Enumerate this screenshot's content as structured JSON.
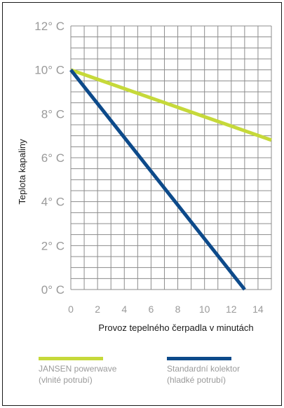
{
  "chart_data": {
    "type": "line",
    "xlabel": "Provoz tepelného čerpadla v minutách",
    "ylabel": "Teplota kapaliny",
    "x_ticks": [
      0,
      2,
      4,
      6,
      8,
      10,
      12,
      14
    ],
    "y_ticks": [
      {
        "value": 0,
        "label": "0° C"
      },
      {
        "value": 2,
        "label": "2° C"
      },
      {
        "value": 4,
        "label": "4° C"
      },
      {
        "value": 6,
        "label": "6° C"
      },
      {
        "value": 8,
        "label": "8° C"
      },
      {
        "value": 10,
        "label": "10° C"
      },
      {
        "value": 12,
        "label": "12° C"
      }
    ],
    "xlim": [
      0,
      15
    ],
    "ylim": [
      0,
      12
    ],
    "grid": true,
    "legend_position": "bottom",
    "series": [
      {
        "name": "JANSEN powerwave",
        "name_line2": "(vlnité potrubí)",
        "color": "#c6d93a",
        "points": [
          [
            0,
            10
          ],
          [
            15,
            6.8
          ]
        ]
      },
      {
        "name": "Standardní kolektor",
        "name_line2": "(hladké potrubí)",
        "color": "#0d4a8a",
        "points": [
          [
            0,
            10
          ],
          [
            13,
            0
          ]
        ]
      }
    ]
  }
}
